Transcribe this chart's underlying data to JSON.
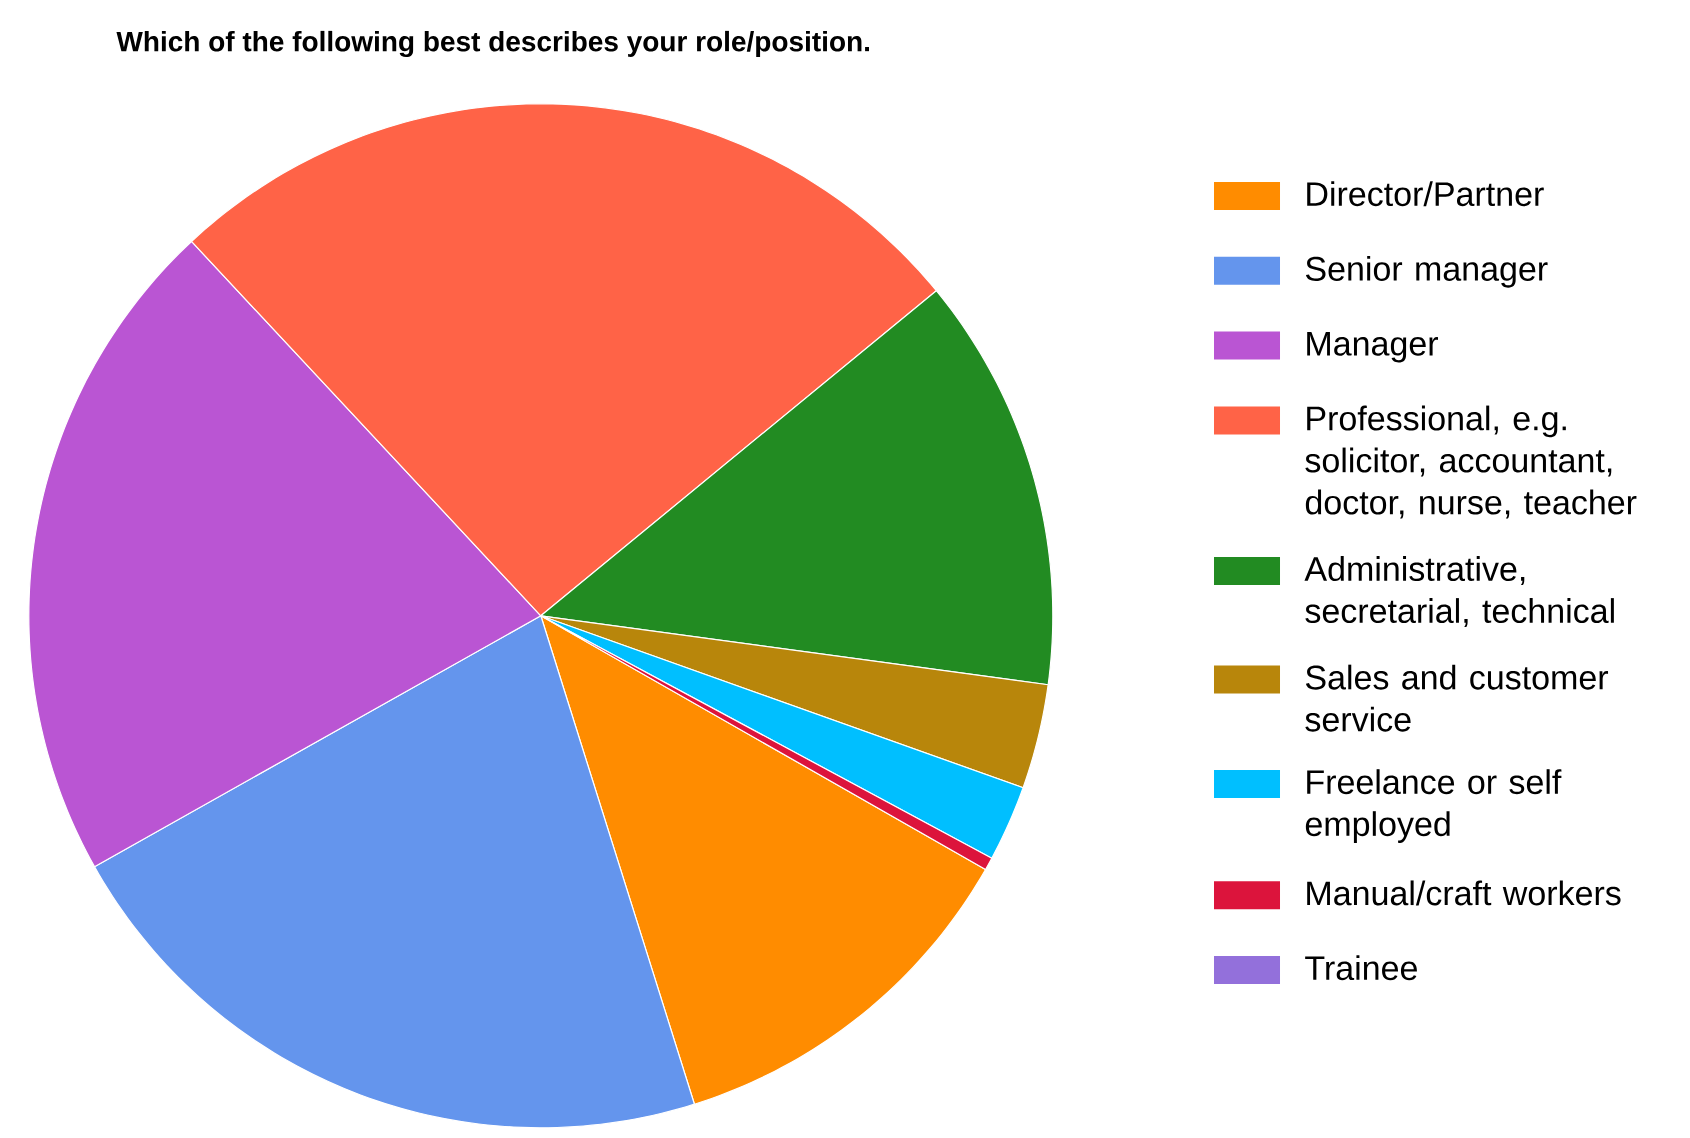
{
  "chart_data": {
    "type": "pie",
    "title": "Which of the following best describes your role/position.",
    "categories": [
      "Director/Partner",
      "Senior manager",
      "Manager",
      "Professional, e.g. solicitor, accountant, doctor, nurse, teacher",
      "Administrative, secretarial, technical",
      "Sales and customer service",
      "Freelance or self employed",
      "Manual/craft workers",
      "Trainee"
    ],
    "values": [
      11.9,
      21.7,
      21.2,
      26.0,
      13.1,
      3.3,
      2.4,
      0.4,
      0
    ],
    "colors": [
      "#ff8c00",
      "#6495ed",
      "#ba55d3",
      "#ff6347",
      "#228b22",
      "#b8860b",
      "#00bfff",
      "#dc143c",
      "#9370db"
    ],
    "legend": "right"
  }
}
